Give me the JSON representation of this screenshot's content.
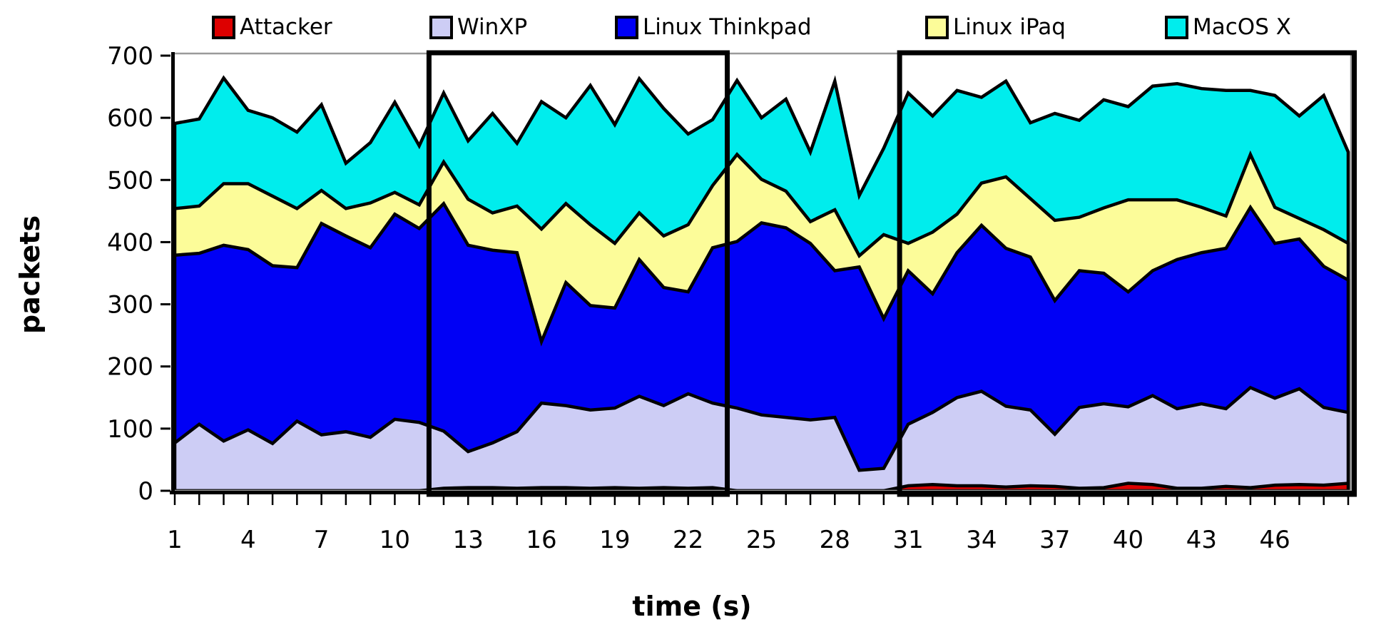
{
  "chart_data": {
    "type": "area",
    "stacked": true,
    "title": "",
    "xlabel": "time (s)",
    "ylabel": "packets",
    "ylim": [
      0,
      700
    ],
    "yticks": [
      0,
      100,
      200,
      300,
      400,
      500,
      600,
      700
    ],
    "grid": false,
    "legend_position": "top",
    "plot_border_color": "#9a9a9a",
    "axis_color": "#000000",
    "x": [
      1,
      2,
      3,
      4,
      5,
      6,
      7,
      8,
      9,
      10,
      11,
      12,
      13,
      14,
      15,
      16,
      17,
      18,
      19,
      20,
      21,
      22,
      23,
      24,
      25,
      26,
      27,
      28,
      29,
      30,
      31,
      32,
      33,
      34,
      35,
      36,
      37,
      38,
      39,
      40,
      41,
      42,
      43,
      44,
      45,
      46,
      47,
      48,
      49
    ],
    "xtick_labels": [
      1,
      4,
      7,
      10,
      13,
      16,
      19,
      22,
      25,
      28,
      31,
      34,
      37,
      40,
      43,
      46
    ],
    "series": [
      {
        "id": "attacker",
        "name": "Attacker",
        "color": "#DD0000",
        "values": [
          0,
          0,
          0,
          0,
          0,
          0,
          0,
          0,
          0,
          0,
          0,
          4,
          5,
          5,
          4,
          5,
          5,
          4,
          5,
          4,
          5,
          4,
          5,
          0,
          0,
          0,
          0,
          0,
          0,
          0,
          8,
          10,
          8,
          8,
          6,
          8,
          7,
          4,
          5,
          12,
          10,
          4,
          4,
          7,
          5,
          9,
          10,
          9,
          12
        ]
      },
      {
        "id": "winxp",
        "name": "WinXP",
        "color": "#CDCDF5",
        "values": [
          77,
          107,
          80,
          98,
          76,
          112,
          90,
          95,
          86,
          115,
          110,
          92,
          58,
          72,
          91,
          136,
          132,
          126,
          128,
          148,
          132,
          152,
          136,
          133,
          122,
          118,
          114,
          118,
          33,
          36,
          99,
          116,
          142,
          152,
          130,
          122,
          84,
          130,
          135,
          123,
          143,
          128,
          136,
          125,
          161,
          140,
          154,
          125,
          114
        ]
      },
      {
        "id": "linux-thinkpad",
        "name": "Linux Thinkpad",
        "color": "#0000F5",
        "values": [
          302,
          275,
          315,
          290,
          286,
          247,
          340,
          315,
          305,
          330,
          312,
          366,
          332,
          310,
          288,
          99,
          198,
          168,
          161,
          220,
          190,
          164,
          250,
          268,
          309,
          305,
          284,
          236,
          327,
          241,
          247,
          191,
          233,
          267,
          254,
          246,
          215,
          220,
          210,
          185,
          201,
          240,
          243,
          258,
          290,
          249,
          241,
          227,
          213
        ]
      },
      {
        "id": "linux-ipaq",
        "name": "Linux iPaq",
        "color": "#FCFC99",
        "values": [
          75,
          76,
          99,
          106,
          112,
          95,
          53,
          44,
          72,
          35,
          38,
          67,
          74,
          60,
          75,
          181,
          127,
          130,
          104,
          75,
          83,
          108,
          100,
          140,
          70,
          59,
          35,
          98,
          18,
          135,
          44,
          99,
          62,
          68,
          115,
          94,
          129,
          86,
          105,
          148,
          114,
          96,
          73,
          52,
          85,
          58,
          33,
          59,
          59
        ]
      },
      {
        "id": "macos-x",
        "name": "MacOS X",
        "color": "#00EDED",
        "values": [
          137,
          140,
          170,
          118,
          126,
          123,
          138,
          73,
          97,
          145,
          95,
          111,
          94,
          160,
          101,
          205,
          138,
          224,
          191,
          216,
          205,
          146,
          106,
          119,
          99,
          148,
          112,
          207,
          97,
          139,
          242,
          187,
          199,
          138,
          154,
          122,
          172,
          156,
          174,
          150,
          183,
          187,
          191,
          202,
          103,
          180,
          165,
          216,
          147
        ]
      }
    ],
    "attack_windows": [
      {
        "from": 11.4,
        "to": 23.6
      },
      {
        "from": 30.65,
        "to": 49.25
      }
    ]
  }
}
